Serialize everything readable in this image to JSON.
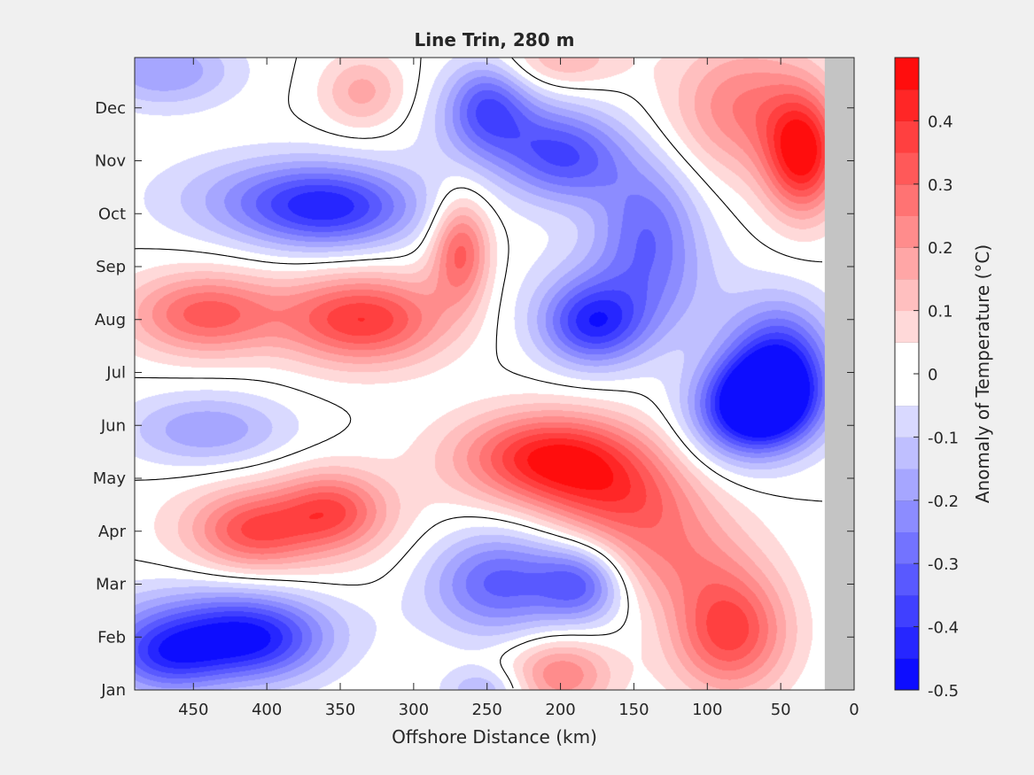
{
  "chart_data": {
    "type": "heatmap",
    "subtype": "filled-contour",
    "title": "Line Trin, 280 m",
    "xlabel": "Offshore Distance (km)",
    "ylabel": "",
    "colorbar_label": "Anomaly of Temperature (°C)",
    "x_reversed": true,
    "xlim": [
      0,
      490
    ],
    "x_ticks": [
      450,
      400,
      350,
      300,
      250,
      200,
      150,
      100,
      50,
      0
    ],
    "ylim": [
      1,
      12.95
    ],
    "y_ticks": [
      {
        "month": 1,
        "label": "Jan"
      },
      {
        "month": 2,
        "label": "Feb"
      },
      {
        "month": 3,
        "label": "Mar"
      },
      {
        "month": 4,
        "label": "Apr"
      },
      {
        "month": 5,
        "label": "May"
      },
      {
        "month": 6,
        "label": "Jun"
      },
      {
        "month": 7,
        "label": "Jul"
      },
      {
        "month": 8,
        "label": "Aug"
      },
      {
        "month": 9,
        "label": "Sep"
      },
      {
        "month": 10,
        "label": "Oct"
      },
      {
        "month": 11,
        "label": "Nov"
      },
      {
        "month": 12,
        "label": "Dec"
      }
    ],
    "clim": [
      -0.5,
      0.5
    ],
    "colorbar_ticks": [
      "0.4",
      "0.3",
      "0.2",
      "0.1",
      "0",
      "-0.1",
      "-0.2",
      "-0.3",
      "-0.4",
      "-0.5"
    ],
    "colorbar_tick_values": [
      0.4,
      0.3,
      0.2,
      0.1,
      0,
      -0.1,
      -0.2,
      -0.3,
      -0.4,
      -0.5
    ],
    "contour_levels": 20,
    "zero_contour": true,
    "no_data_region_x": [
      0,
      20
    ],
    "colors": {
      "positive_max": "#ff0000",
      "negative_max": "#0000ff",
      "neutral": "#ffffff",
      "no_data": "#c4c4c4",
      "figure_bg": "#f0f0f0"
    },
    "anomaly_features": [
      {
        "x": 440,
        "y": 8.1,
        "value": 0.33,
        "sx": 38,
        "sy": 0.55
      },
      {
        "x": 350,
        "y": 8.0,
        "value": 0.27,
        "sx": 30,
        "sy": 0.6
      },
      {
        "x": 310,
        "y": 8.0,
        "value": 0.22,
        "sx": 30,
        "sy": 0.6
      },
      {
        "x": 268,
        "y": 9.3,
        "value": 0.32,
        "sx": 14,
        "sy": 0.7
      },
      {
        "x": 335,
        "y": 12.3,
        "value": 0.17,
        "sx": 20,
        "sy": 0.5
      },
      {
        "x": 410,
        "y": 4.0,
        "value": 0.25,
        "sx": 28,
        "sy": 0.5
      },
      {
        "x": 355,
        "y": 4.4,
        "value": 0.26,
        "sx": 25,
        "sy": 0.5
      },
      {
        "x": 385,
        "y": 4.1,
        "value": 0.12,
        "sx": 60,
        "sy": 0.8
      },
      {
        "x": 205,
        "y": 5.4,
        "value": 0.45,
        "sx": 45,
        "sy": 0.6
      },
      {
        "x": 160,
        "y": 4.6,
        "value": 0.25,
        "sx": 40,
        "sy": 0.6
      },
      {
        "x": 130,
        "y": 3.5,
        "value": 0.22,
        "sx": 40,
        "sy": 0.7
      },
      {
        "x": 85,
        "y": 2.1,
        "value": 0.38,
        "sx": 28,
        "sy": 0.8
      },
      {
        "x": 200,
        "y": 1.3,
        "value": 0.25,
        "sx": 25,
        "sy": 0.5
      },
      {
        "x": 35,
        "y": 11.1,
        "value": 0.45,
        "sx": 18,
        "sy": 0.8
      },
      {
        "x": 75,
        "y": 12.0,
        "value": 0.25,
        "sx": 35,
        "sy": 0.9
      },
      {
        "x": 200,
        "y": 12.9,
        "value": 0.15,
        "sx": 30,
        "sy": 0.4
      },
      {
        "x": 355,
        "y": 10.1,
        "value": -0.34,
        "sx": 42,
        "sy": 0.55
      },
      {
        "x": 400,
        "y": 10.3,
        "value": -0.15,
        "sx": 55,
        "sy": 0.6
      },
      {
        "x": 470,
        "y": 12.7,
        "value": -0.2,
        "sx": 35,
        "sy": 0.5
      },
      {
        "x": 250,
        "y": 12.1,
        "value": -0.28,
        "sx": 20,
        "sy": 0.6
      },
      {
        "x": 195,
        "y": 11.0,
        "value": -0.28,
        "sx": 30,
        "sy": 0.6
      },
      {
        "x": 230,
        "y": 11.5,
        "value": -0.15,
        "sx": 40,
        "sy": 0.6
      },
      {
        "x": 140,
        "y": 9.8,
        "value": -0.25,
        "sx": 25,
        "sy": 0.9
      },
      {
        "x": 178,
        "y": 7.9,
        "value": -0.35,
        "sx": 25,
        "sy": 0.55
      },
      {
        "x": 150,
        "y": 8.5,
        "value": -0.15,
        "sx": 45,
        "sy": 0.8
      },
      {
        "x": 60,
        "y": 6.4,
        "value": -0.48,
        "sx": 25,
        "sy": 0.6
      },
      {
        "x": 50,
        "y": 7.2,
        "value": -0.38,
        "sx": 25,
        "sy": 0.8
      },
      {
        "x": 85,
        "y": 6.2,
        "value": -0.2,
        "sx": 25,
        "sy": 0.7
      },
      {
        "x": 440,
        "y": 5.9,
        "value": -0.2,
        "sx": 40,
        "sy": 0.5
      },
      {
        "x": 245,
        "y": 3.0,
        "value": -0.22,
        "sx": 32,
        "sy": 0.7
      },
      {
        "x": 185,
        "y": 3.0,
        "value": -0.25,
        "sx": 20,
        "sy": 0.5
      },
      {
        "x": 215,
        "y": 3.1,
        "value": -0.12,
        "sx": 50,
        "sy": 0.7
      },
      {
        "x": 410,
        "y": 1.9,
        "value": -0.35,
        "sx": 35,
        "sy": 0.55
      },
      {
        "x": 470,
        "y": 1.6,
        "value": -0.3,
        "sx": 28,
        "sy": 0.5
      },
      {
        "x": 440,
        "y": 2.3,
        "value": -0.18,
        "sx": 60,
        "sy": 0.6
      },
      {
        "x": 252,
        "y": 1.0,
        "value": -0.15,
        "sx": 20,
        "sy": 0.3
      }
    ]
  }
}
